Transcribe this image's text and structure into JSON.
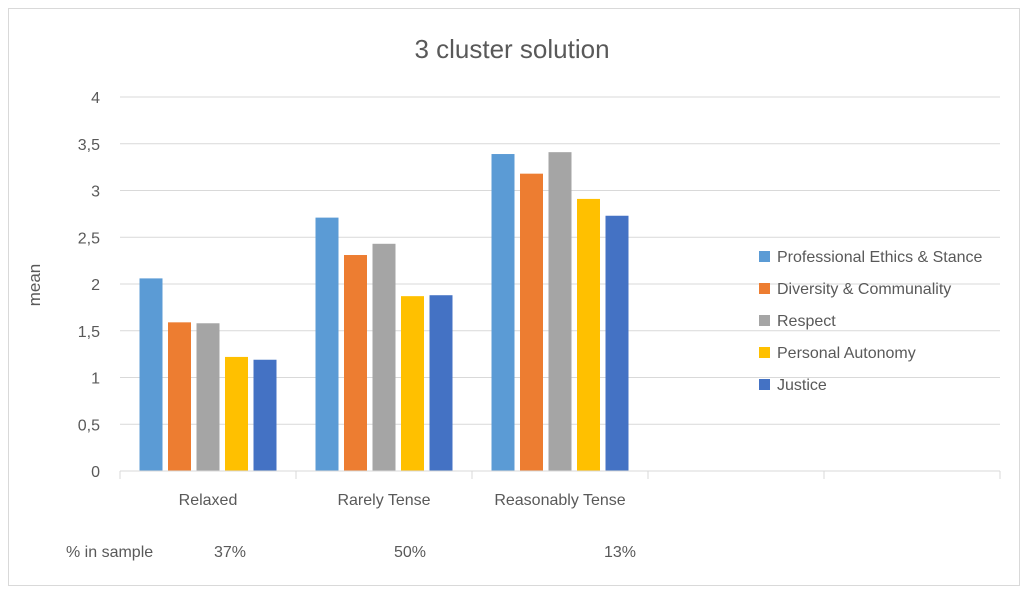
{
  "chart_data": {
    "type": "bar",
    "title": "3 cluster solution",
    "xlabel": "",
    "ylabel": "mean",
    "ylim": [
      0,
      4
    ],
    "yticks": [
      "0",
      "0,5",
      "1",
      "1,5",
      "2",
      "2,5",
      "3",
      "3,5",
      "4"
    ],
    "categories": [
      "Relaxed",
      "Rarely Tense",
      "Reasonably Tense"
    ],
    "series": [
      {
        "name": "Professional Ethics & Stance",
        "values": [
          2.06,
          2.71,
          3.39
        ]
      },
      {
        "name": "Diversity & Communality",
        "values": [
          1.59,
          2.31,
          3.18
        ]
      },
      {
        "name": "Respect",
        "values": [
          1.58,
          2.43,
          3.41
        ]
      },
      {
        "name": "Personal Autonomy",
        "values": [
          1.22,
          1.87,
          2.91
        ]
      },
      {
        "name": "Justice",
        "values": [
          1.19,
          1.88,
          2.73
        ]
      }
    ],
    "colors": [
      "#5b9bd5",
      "#ed7d31",
      "#a5a5a5",
      "#ffc000",
      "#4472c4"
    ],
    "grid": true,
    "legend_position": "right",
    "sample_label": "% in sample",
    "sample_values": [
      "37%",
      "50%",
      "13%"
    ]
  }
}
